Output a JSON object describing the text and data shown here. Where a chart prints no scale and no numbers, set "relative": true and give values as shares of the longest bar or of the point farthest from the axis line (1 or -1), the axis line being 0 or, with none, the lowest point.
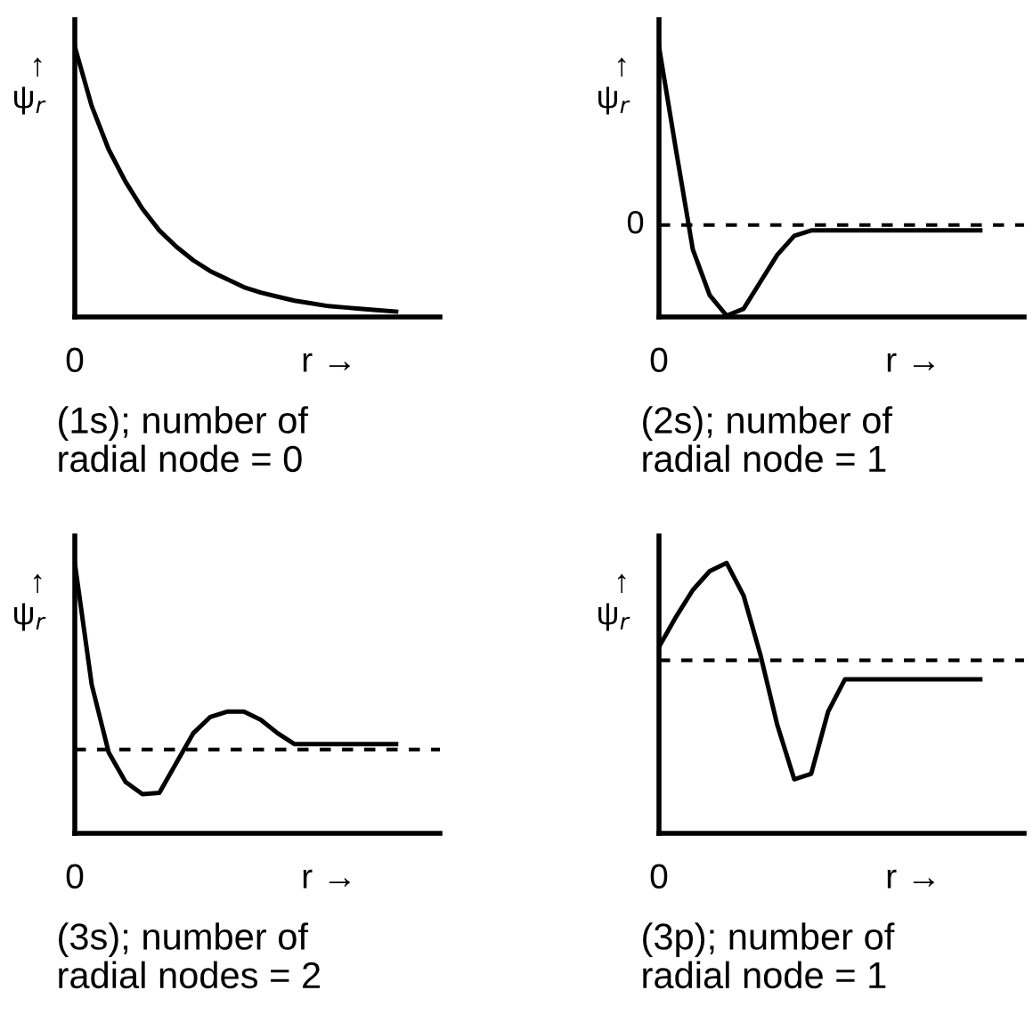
{
  "chart_data": [
    {
      "type": "line",
      "relative": true,
      "title": "(1s); number of\nradial node = 0",
      "ylabel": "↑\nψ$_{r}$",
      "xlabel": "r →",
      "annotations": [
        "0"
      ],
      "tick_labels": false,
      "categories": [
        null,
        null,
        null,
        null,
        null,
        null,
        null,
        null,
        null,
        null,
        null,
        null,
        null,
        null,
        null,
        null,
        null,
        null,
        null,
        null
      ],
      "series": [
        {
          "color": "#000000",
          "values": [
            1.0,
            0.78,
            0.62,
            0.5,
            0.4,
            0.32,
            0.26,
            0.21,
            0.17,
            0.14,
            0.11,
            0.09,
            0.075,
            0.06,
            0.05,
            0.04,
            0.035,
            0.03,
            0.025,
            0.02
          ]
        }
      ]
    },
    {
      "type": "line",
      "relative": true,
      "title": "(2s); number of\nradial node = 1",
      "ylabel": "↑\nψ$_{r}$",
      "xlabel": "r →",
      "annotations": [
        "0"
      ],
      "tick_labels": false,
      "categories": [
        null,
        null,
        null,
        null,
        null,
        null,
        null,
        null,
        null,
        null,
        null,
        null,
        null,
        null,
        null,
        null,
        null,
        null,
        null,
        null
      ],
      "series": [
        {
          "color": "#000000",
          "values": [
            1.0,
            0.62,
            0.25,
            0.08,
            0.005,
            0.03,
            0.13,
            0.23,
            0.3,
            0.32,
            0.32,
            0.32,
            0.32,
            0.32,
            0.32,
            0.32,
            0.32,
            0.32,
            0.32,
            0.32
          ]
        }
      ],
      "ref_lines": [
        {
          "axis": "y",
          "value": 0.34,
          "label": "0",
          "line_style": "dashed",
          "color": "#000000"
        }
      ]
    },
    {
      "type": "line",
      "relative": true,
      "title": "(3s); number of\nradial nodes = 2",
      "ylabel": "↑\nψ$_{r}$",
      "xlabel": "r →",
      "annotations": [
        "0"
      ],
      "tick_labels": false,
      "categories": [
        null,
        null,
        null,
        null,
        null,
        null,
        null,
        null,
        null,
        null,
        null,
        null,
        null,
        null,
        null,
        null,
        null,
        null,
        null,
        null
      ],
      "series": [
        {
          "color": "#000000",
          "values": [
            1.0,
            0.55,
            0.3,
            0.19,
            0.145,
            0.15,
            0.26,
            0.37,
            0.43,
            0.45,
            0.45,
            0.42,
            0.37,
            0.33,
            0.33,
            0.33,
            0.33,
            0.33,
            0.33,
            0.33
          ]
        }
      ],
      "ref_lines": [
        {
          "axis": "y",
          "value": 0.31,
          "label": null,
          "line_style": "dashed",
          "color": "#000000"
        }
      ]
    },
    {
      "type": "line",
      "relative": true,
      "title": "(3p); number of\nradial node = 1",
      "ylabel": "↑\nψ$_{r}$",
      "xlabel": "r →",
      "annotations": [
        "0"
      ],
      "tick_labels": false,
      "categories": [
        null,
        null,
        null,
        null,
        null,
        null,
        null,
        null,
        null,
        null,
        null,
        null,
        null,
        null,
        null,
        null,
        null,
        null,
        null,
        null
      ],
      "series": [
        {
          "color": "#000000",
          "values": [
            0.69,
            0.8,
            0.9,
            0.97,
            1.0,
            0.88,
            0.66,
            0.4,
            0.2,
            0.22,
            0.45,
            0.57,
            0.57,
            0.57,
            0.57,
            0.57,
            0.57,
            0.57,
            0.57,
            0.57
          ]
        }
      ],
      "ref_lines": [
        {
          "axis": "y",
          "value": 0.64,
          "label": null,
          "line_style": "dashed",
          "color": "#000000"
        }
      ]
    }
  ]
}
